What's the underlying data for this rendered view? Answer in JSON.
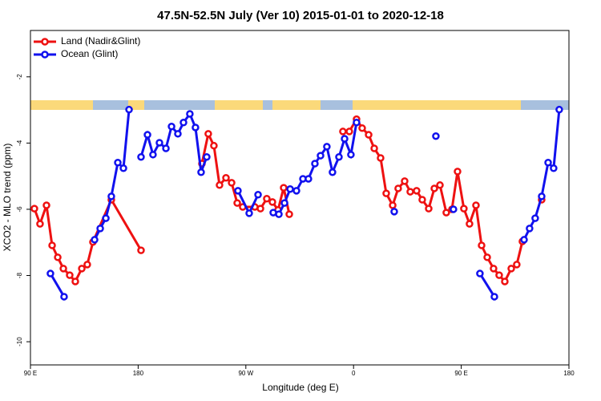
{
  "chart_data": {
    "type": "line",
    "title": "47.5N-52.5N July (Ver 10)   2015-01-01 to 2020-12-18",
    "x_label": "Longitude (deg E)",
    "y_label": "XCO2 - MLO trend (ppm)",
    "xlim": [
      90,
      540
    ],
    "xticks": [
      {
        "value": 90,
        "label": "90 E"
      },
      {
        "value": 180,
        "label": "180"
      },
      {
        "value": 270,
        "label": "90 W"
      },
      {
        "value": 360,
        "label": "0"
      },
      {
        "value": 450,
        "label": "90 E"
      },
      {
        "value": 540,
        "label": "180"
      }
    ],
    "ylim": [
      -10.7,
      -0.6
    ],
    "yticks": [
      -2,
      -4,
      -6,
      -8,
      -10
    ],
    "legend": "top-left",
    "series": [
      {
        "name": "Land (Nadir&Glint)",
        "color": "#ee1111",
        "x": [
          93.3,
          98.0,
          103.4,
          108.1,
          112.8,
          117.5,
          122.8,
          127.5,
          132.9,
          137.5,
          142.2,
          157.6,
          182.4,
          null,
          233.3,
          238.6,
          243.3,
          248.0,
          253.4,
          258.1,
          262.8,
          267.4,
          277.5,
          282.2,
          287.5,
          292.2,
          296.9,
          301.6,
          306.3,
          null,
          351.1,
          356.5,
          362.5,
          367.2,
          372.6,
          377.3,
          382.6,
          387.3,
          392.7,
          397.3,
          402.7,
          407.4,
          412.7,
          417.4,
          422.8,
          427.5,
          432.2,
          437.5,
          442.2,
          446.9,
          452.2,
          456.9,
          462.3,
          467.0,
          471.7,
          477.0,
          481.7,
          486.4,
          491.8,
          496.4,
          501.1,
          null,
          517.2
        ],
        "values": [
          -5.98,
          -6.44,
          -5.88,
          -7.09,
          -7.45,
          -7.79,
          -7.99,
          -8.18,
          -7.79,
          -7.67,
          -6.99,
          -5.71,
          -7.24,
          null,
          -4.62,
          -3.72,
          -4.08,
          -5.27,
          -5.05,
          -5.2,
          -5.81,
          -5.93,
          -5.93,
          -5.98,
          -5.68,
          -5.78,
          -6.02,
          -5.35,
          -6.15,
          null,
          -3.65,
          -3.65,
          -3.28,
          -3.55,
          -3.75,
          -4.16,
          -4.45,
          -5.52,
          -5.88,
          -5.37,
          -5.15,
          -5.47,
          -5.44,
          -5.71,
          -5.98,
          -5.37,
          -5.27,
          -6.1,
          -6.0,
          -4.86,
          -5.98,
          -6.44,
          -5.88,
          -7.09,
          -7.45,
          -7.79,
          -7.99,
          -8.18,
          -7.79,
          -7.67,
          -6.97,
          null,
          -5.71
        ]
      },
      {
        "name": "Ocean (Glint)",
        "color": "#1111ee",
        "x": [
          106.7,
          118.1,
          null,
          143.6,
          148.3,
          153.0,
          157.6,
          163.0,
          167.7,
          172.4,
          null,
          182.4,
          187.8,
          192.4,
          197.8,
          203.2,
          207.9,
          213.2,
          217.9,
          223.2,
          227.9,
          232.6,
          237.3,
          null,
          263.4,
          272.8,
          280.2,
          null,
          292.9,
          297.6,
          302.3,
          307.0,
          312.3,
          317.7,
          322.3,
          327.7,
          332.4,
          337.7,
          342.4,
          347.8,
          352.5,
          357.8,
          362.5,
          null,
          394.0,
          null,
          428.8,
          null,
          443.5,
          null,
          465.6,
          477.7,
          null,
          502.5,
          507.1,
          511.8,
          517.2,
          522.6,
          527.2,
          531.9
        ],
        "values": [
          -7.94,
          -8.64,
          null,
          -6.92,
          -6.58,
          -6.27,
          -5.61,
          -4.59,
          -4.76,
          -2.99,
          null,
          -4.42,
          -3.75,
          -4.35,
          -3.99,
          -4.16,
          -3.5,
          -3.72,
          -3.38,
          -3.12,
          -3.53,
          -4.88,
          -4.42,
          null,
          -5.44,
          -6.12,
          -5.56,
          null,
          -6.1,
          -6.15,
          -5.81,
          -5.39,
          -5.44,
          -5.08,
          -5.08,
          -4.62,
          -4.38,
          -4.11,
          -4.88,
          -4.42,
          -3.87,
          -4.35,
          -3.38,
          null,
          -6.07,
          null,
          -3.79,
          null,
          -6.0,
          null,
          -7.94,
          -8.64,
          null,
          -6.92,
          -6.58,
          -6.27,
          -5.61,
          -4.59,
          -4.76,
          -2.99
        ]
      }
    ]
  }
}
